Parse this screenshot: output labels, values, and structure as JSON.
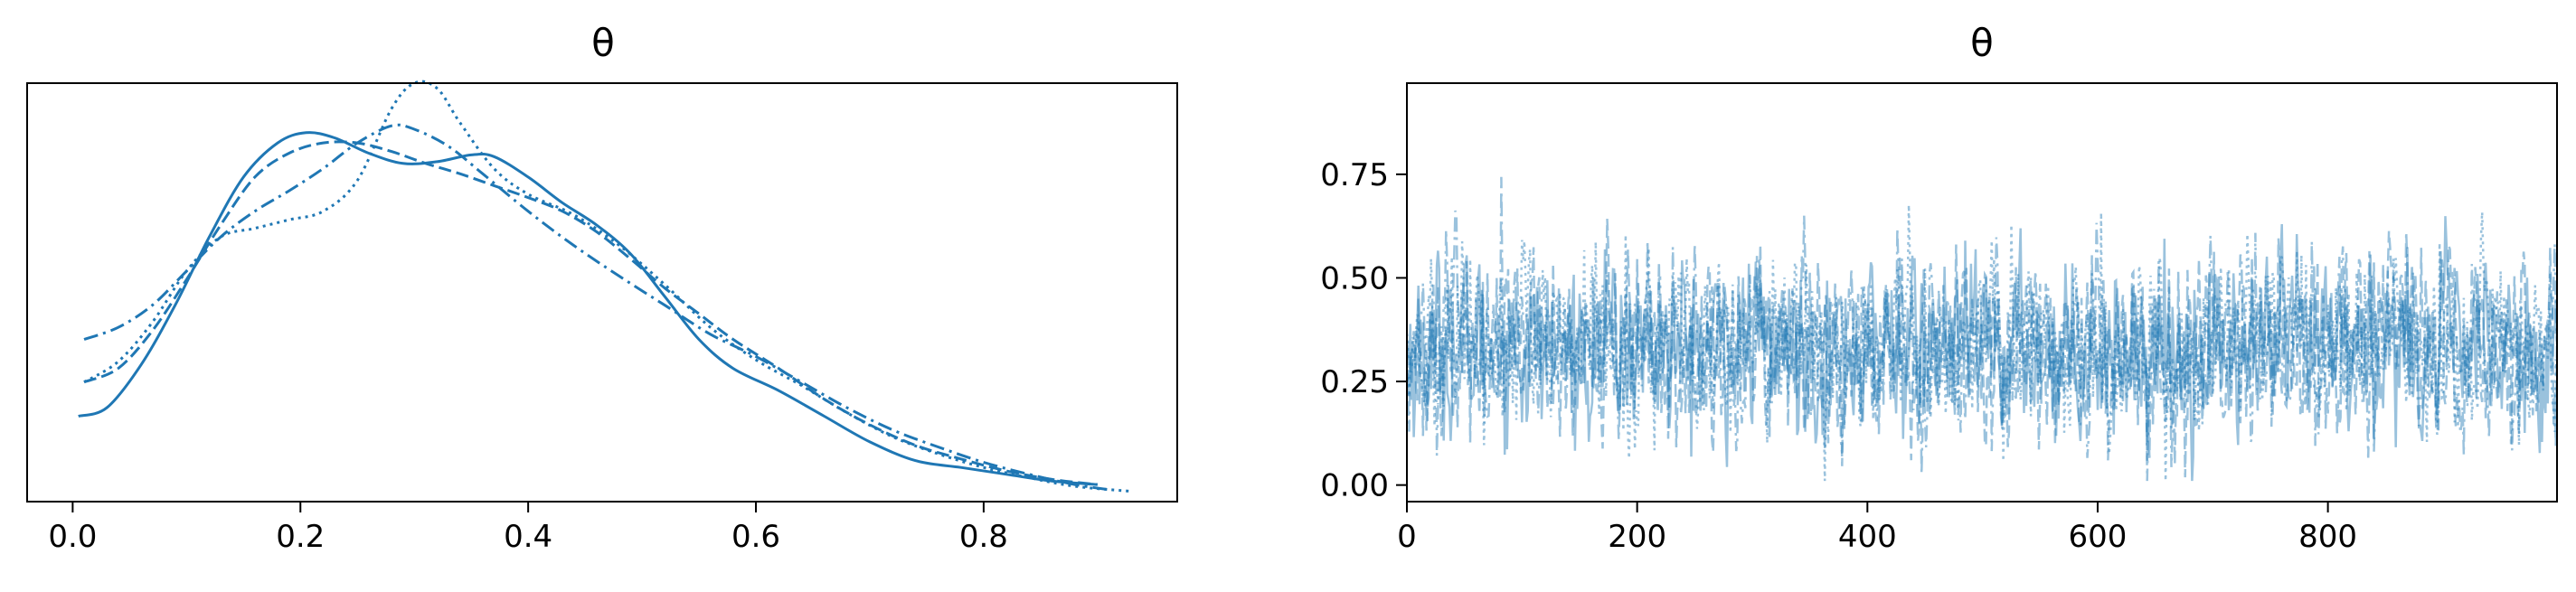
{
  "chart_data": [
    {
      "type": "line",
      "subtype": "kde",
      "title": "θ",
      "xlabel": "",
      "ylabel": "",
      "xlim": [
        -0.04,
        0.97
      ],
      "ylim": [
        0,
        2.45
      ],
      "x_ticks": [
        0.0,
        0.2,
        0.4,
        0.6,
        0.8
      ],
      "x_tick_labels": [
        "0.0",
        "0.2",
        "0.4",
        "0.6",
        "0.8"
      ],
      "y_ticks_shown": false,
      "grid": false,
      "legend": "none",
      "color": "#1f77b4",
      "series": [
        {
          "line_style": "solid",
          "points": [
            [
              0.005,
              0.5
            ],
            [
              0.03,
              0.55
            ],
            [
              0.06,
              0.8
            ],
            [
              0.09,
              1.15
            ],
            [
              0.12,
              1.55
            ],
            [
              0.15,
              1.9
            ],
            [
              0.18,
              2.1
            ],
            [
              0.205,
              2.16
            ],
            [
              0.23,
              2.13
            ],
            [
              0.26,
              2.04
            ],
            [
              0.29,
              1.98
            ],
            [
              0.32,
              1.99
            ],
            [
              0.35,
              2.03
            ],
            [
              0.37,
              2.02
            ],
            [
              0.4,
              1.9
            ],
            [
              0.43,
              1.75
            ],
            [
              0.46,
              1.62
            ],
            [
              0.49,
              1.45
            ],
            [
              0.52,
              1.2
            ],
            [
              0.55,
              0.95
            ],
            [
              0.58,
              0.78
            ],
            [
              0.62,
              0.65
            ],
            [
              0.66,
              0.5
            ],
            [
              0.7,
              0.35
            ],
            [
              0.74,
              0.24
            ],
            [
              0.78,
              0.2
            ],
            [
              0.82,
              0.16
            ],
            [
              0.86,
              0.12
            ],
            [
              0.9,
              0.1
            ]
          ]
        },
        {
          "line_style": "dashed",
          "points": [
            [
              0.01,
              0.7
            ],
            [
              0.04,
              0.78
            ],
            [
              0.07,
              1.0
            ],
            [
              0.1,
              1.3
            ],
            [
              0.13,
              1.62
            ],
            [
              0.16,
              1.9
            ],
            [
              0.19,
              2.04
            ],
            [
              0.22,
              2.1
            ],
            [
              0.25,
              2.1
            ],
            [
              0.28,
              2.05
            ],
            [
              0.31,
              1.98
            ],
            [
              0.34,
              1.92
            ],
            [
              0.37,
              1.85
            ],
            [
              0.4,
              1.78
            ],
            [
              0.43,
              1.7
            ],
            [
              0.46,
              1.58
            ],
            [
              0.49,
              1.42
            ],
            [
              0.52,
              1.25
            ],
            [
              0.55,
              1.1
            ],
            [
              0.58,
              0.95
            ],
            [
              0.62,
              0.78
            ],
            [
              0.66,
              0.6
            ],
            [
              0.7,
              0.45
            ],
            [
              0.74,
              0.33
            ],
            [
              0.78,
              0.25
            ],
            [
              0.82,
              0.18
            ],
            [
              0.86,
              0.13
            ],
            [
              0.9,
              0.1
            ]
          ]
        },
        {
          "line_style": "dashdot",
          "points": [
            [
              0.01,
              0.95
            ],
            [
              0.04,
              1.02
            ],
            [
              0.07,
              1.15
            ],
            [
              0.1,
              1.35
            ],
            [
              0.13,
              1.55
            ],
            [
              0.16,
              1.7
            ],
            [
              0.19,
              1.82
            ],
            [
              0.22,
              1.95
            ],
            [
              0.25,
              2.1
            ],
            [
              0.28,
              2.2
            ],
            [
              0.3,
              2.18
            ],
            [
              0.33,
              2.08
            ],
            [
              0.36,
              1.92
            ],
            [
              0.4,
              1.7
            ],
            [
              0.44,
              1.5
            ],
            [
              0.48,
              1.32
            ],
            [
              0.52,
              1.15
            ],
            [
              0.56,
              0.98
            ],
            [
              0.6,
              0.85
            ],
            [
              0.64,
              0.7
            ],
            [
              0.68,
              0.55
            ],
            [
              0.72,
              0.42
            ],
            [
              0.76,
              0.32
            ],
            [
              0.8,
              0.23
            ],
            [
              0.84,
              0.16
            ],
            [
              0.88,
              0.1
            ],
            [
              0.91,
              0.07
            ]
          ]
        },
        {
          "line_style": "dotted",
          "points": [
            [
              0.01,
              0.7
            ],
            [
              0.04,
              0.82
            ],
            [
              0.07,
              1.05
            ],
            [
              0.1,
              1.35
            ],
            [
              0.13,
              1.55
            ],
            [
              0.16,
              1.6
            ],
            [
              0.19,
              1.65
            ],
            [
              0.22,
              1.7
            ],
            [
              0.25,
              1.88
            ],
            [
              0.28,
              2.3
            ],
            [
              0.3,
              2.45
            ],
            [
              0.32,
              2.42
            ],
            [
              0.34,
              2.22
            ],
            [
              0.37,
              1.95
            ],
            [
              0.4,
              1.8
            ],
            [
              0.44,
              1.68
            ],
            [
              0.48,
              1.5
            ],
            [
              0.52,
              1.27
            ],
            [
              0.56,
              1.02
            ],
            [
              0.6,
              0.83
            ],
            [
              0.64,
              0.68
            ],
            [
              0.68,
              0.52
            ],
            [
              0.72,
              0.38
            ],
            [
              0.76,
              0.28
            ],
            [
              0.8,
              0.2
            ],
            [
              0.84,
              0.14
            ],
            [
              0.88,
              0.09
            ],
            [
              0.93,
              0.06
            ]
          ]
        }
      ]
    },
    {
      "type": "line",
      "subtype": "trace",
      "title": "θ",
      "xlabel": "",
      "ylabel": "",
      "xlim": [
        0,
        999
      ],
      "ylim": [
        -0.04,
        0.97
      ],
      "x_ticks": [
        0,
        200,
        400,
        600,
        800
      ],
      "x_tick_labels": [
        "0",
        "200",
        "400",
        "600",
        "800"
      ],
      "y_ticks": [
        0.0,
        0.25,
        0.5,
        0.75
      ],
      "y_tick_labels": [
        "0.00",
        "0.25",
        "0.50",
        "0.75"
      ],
      "grid": false,
      "legend": "none",
      "color": "#1f77b4",
      "n_draws": 1000,
      "chains": 4,
      "line_styles": [
        "solid",
        "dashed",
        "dashdot",
        "dotted"
      ],
      "value_mean": 0.33,
      "value_sd": 0.17,
      "value_min": 0.01,
      "value_max": 0.93
    }
  ]
}
